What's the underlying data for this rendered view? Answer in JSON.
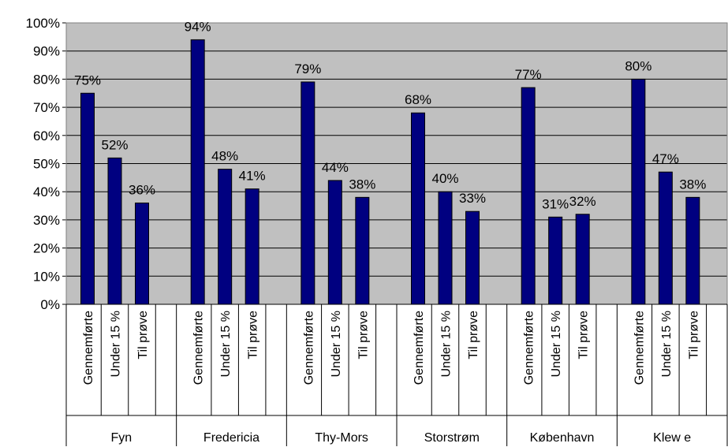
{
  "chart_data": {
    "type": "bar",
    "groups": [
      "Fyn",
      "Fredericia",
      "Thy-Mors",
      "Storstrøm",
      "København",
      "Klew e"
    ],
    "categories": [
      "Gennemførte",
      "Under 15 %",
      "Til prøve"
    ],
    "values": [
      [
        75,
        52,
        36
      ],
      [
        94,
        48,
        41
      ],
      [
        79,
        44,
        38
      ],
      [
        68,
        40,
        33
      ],
      [
        77,
        31,
        32
      ],
      [
        80,
        47,
        38
      ]
    ],
    "data_labels": [
      [
        "75%",
        "52%",
        "36%"
      ],
      [
        "94%",
        "48%",
        "41%"
      ],
      [
        "79%",
        "44%",
        "38%"
      ],
      [
        "68%",
        "40%",
        "33%"
      ],
      [
        "77%",
        "31%",
        "32%"
      ],
      [
        "80%",
        "47%",
        "38%"
      ]
    ],
    "y_ticks": [
      "0%",
      "10%",
      "20%",
      "30%",
      "40%",
      "50%",
      "60%",
      "70%",
      "80%",
      "90%",
      "100%"
    ],
    "ylim": [
      0,
      100
    ],
    "grid": true,
    "legend": "none",
    "title": "",
    "xlabel": "",
    "ylabel": ""
  },
  "colors": {
    "plot_background": "#c0c0c0",
    "bar_fill": "#000080",
    "bar_stroke": "#000000",
    "gridline": "#000000"
  }
}
